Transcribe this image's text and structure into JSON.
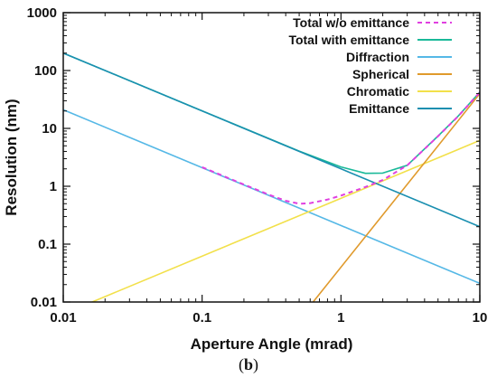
{
  "chart_data": {
    "type": "line",
    "xlabel": "Aperture Angle (mrad)",
    "ylabel": "Resolution (nm)",
    "xscale": "log",
    "yscale": "log",
    "xlim": [
      0.01,
      10
    ],
    "ylim": [
      0.01,
      1000
    ],
    "x_ticks": [
      "0.01",
      "0.1",
      "1",
      "10"
    ],
    "y_ticks": [
      "0.01",
      "0.1",
      "1",
      "10",
      "100",
      "1000"
    ],
    "legend_position": "top-right",
    "grid": false,
    "series": [
      {
        "name": "Total w/o emittance",
        "color": "#e040e0",
        "dash": true,
        "x": [
          0.1,
          0.2,
          0.3,
          0.4,
          0.5,
          0.6,
          0.8,
          1,
          1.5,
          2,
          3,
          5,
          7,
          10
        ],
        "y": [
          2.14,
          1.07,
          0.72,
          0.56,
          0.5,
          0.51,
          0.59,
          0.69,
          0.97,
          1.28,
          2.3,
          7.3,
          16.3,
          42.2
        ]
      },
      {
        "name": "Total with emittance",
        "color": "#1ab999",
        "dash": false,
        "x": [
          0.01,
          0.1,
          0.5,
          1,
          1.5,
          2,
          3,
          5,
          7,
          10
        ],
        "y": [
          200,
          20.1,
          4.06,
          2.16,
          1.67,
          1.69,
          2.3,
          7.36,
          16.4,
          42.4
        ]
      },
      {
        "name": "Diffraction",
        "color": "#55b8e6",
        "dash": false,
        "x": [
          0.01,
          10
        ],
        "y": [
          21,
          0.021
        ]
      },
      {
        "name": "Spherical",
        "color": "#e09a2c",
        "dash": false,
        "x": [
          0.6,
          10
        ],
        "y": [
          0.00864,
          40
        ]
      },
      {
        "name": "Chromatic",
        "color": "#f2e04a",
        "dash": false,
        "x": [
          0.01,
          10
        ],
        "y": [
          0.0062,
          6.2
        ]
      },
      {
        "name": "Emittance",
        "color": "#1a8fb0",
        "dash": false,
        "x": [
          0.01,
          10
        ],
        "y": [
          200,
          0.2
        ]
      }
    ]
  },
  "caption": {
    "open": "(",
    "letter": "b",
    "close": ")"
  }
}
